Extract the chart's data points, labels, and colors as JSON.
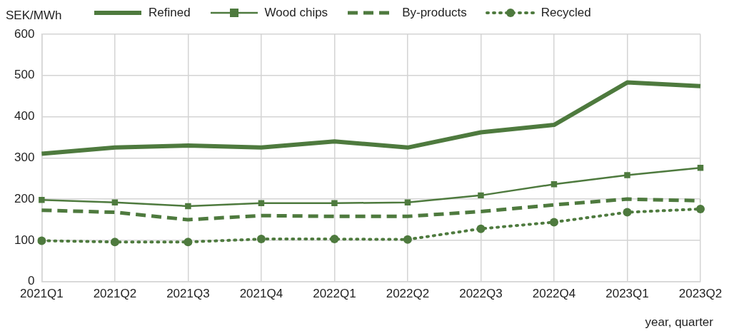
{
  "chart_data": {
    "type": "line",
    "xlabel": "year, quarter",
    "ylabel": "SEK/MWh",
    "categories": [
      "2021Q1",
      "2021Q2",
      "2021Q3",
      "2021Q4",
      "2022Q1",
      "2022Q2",
      "2022Q3",
      "2022Q4",
      "2023Q1",
      "2023Q2"
    ],
    "series": [
      {
        "name": "Refined",
        "color": "#4e7a3e",
        "line_style": "solid",
        "marker": "none",
        "values": [
          310,
          325,
          330,
          325,
          340,
          325,
          362,
          380,
          483,
          474
        ]
      },
      {
        "name": "Wood chips",
        "color": "#4e7a3e",
        "line_style": "solid",
        "marker": "square",
        "values": [
          198,
          192,
          183,
          190,
          190,
          192,
          209,
          236,
          258,
          276
        ]
      },
      {
        "name": "By-products",
        "color": "#4e7a3e",
        "line_style": "dashed",
        "marker": "none",
        "values": [
          173,
          168,
          150,
          160,
          158,
          158,
          170,
          186,
          200,
          196
        ]
      },
      {
        "name": "Recycled",
        "color": "#4e7a3e",
        "line_style": "dotted",
        "marker": "circle",
        "values": [
          99,
          96,
          96,
          103,
          103,
          102,
          128,
          144,
          168,
          176
        ]
      }
    ],
    "ylim": [
      0,
      600
    ],
    "yticks": [
      0,
      100,
      200,
      300,
      400,
      500,
      600
    ],
    "grid": true,
    "legend": "top"
  }
}
